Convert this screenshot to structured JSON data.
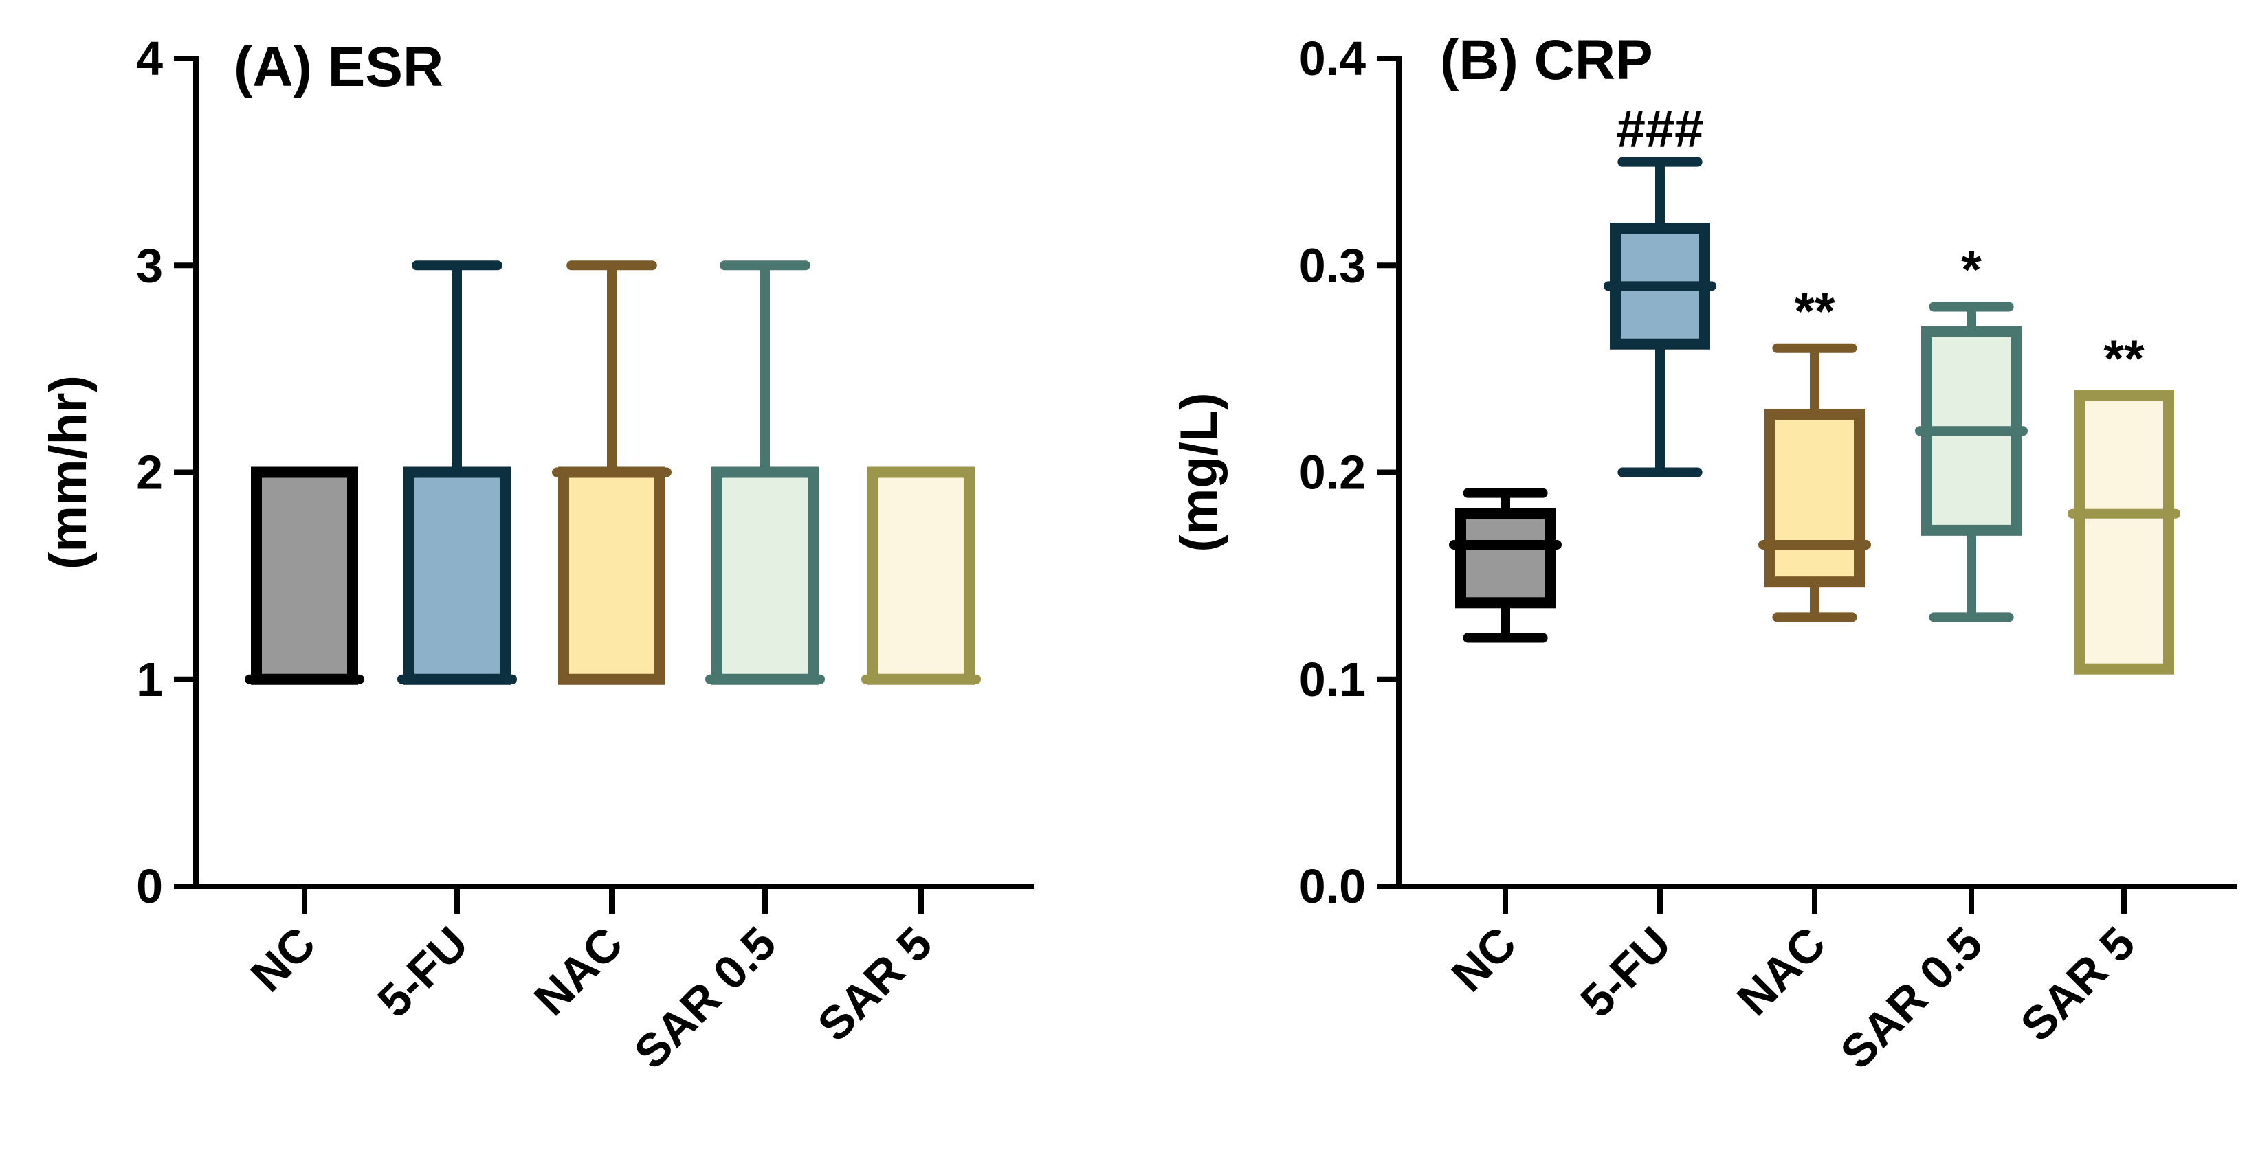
{
  "chart_data": [
    {
      "type": "box",
      "title": "(A) ESR",
      "xlabel": "",
      "ylabel": "(mm/hr)",
      "ylim": [
        0,
        4
      ],
      "yticks": [
        0,
        1,
        2,
        3,
        4
      ],
      "categories": [
        "NC",
        "5-FU",
        "NAC",
        "SAR 0.5",
        "SAR 5"
      ],
      "boxes": [
        {
          "category": "NC",
          "min": 1,
          "q1": 1,
          "median": 1,
          "q3": 2,
          "max": 2
        },
        {
          "category": "5-FU",
          "min": 1,
          "q1": 1,
          "median": 1,
          "q3": 2,
          "max": 3
        },
        {
          "category": "NAC",
          "min": 1,
          "q1": 1,
          "median": 2,
          "q3": 2,
          "max": 3
        },
        {
          "category": "SAR 0.5",
          "min": 1,
          "q1": 1,
          "median": 1,
          "q3": 2,
          "max": 3
        },
        {
          "category": "SAR 5",
          "min": 1,
          "q1": 1,
          "median": 1,
          "q3": 2,
          "max": 2
        }
      ],
      "annotations": [
        "",
        "",
        "",
        "",
        ""
      ],
      "grid": false,
      "legend": "none"
    },
    {
      "type": "box",
      "title": "(B) CRP",
      "xlabel": "",
      "ylabel": "(mg/L)",
      "ylim": [
        0,
        0.4
      ],
      "yticks": [
        "0.0",
        "0.1",
        "0.2",
        "0.3",
        "0.4"
      ],
      "categories": [
        "NC",
        "5-FU",
        "NAC",
        "SAR 0.5",
        "SAR 5"
      ],
      "boxes": [
        {
          "category": "NC",
          "min": 0.12,
          "q1": 0.137,
          "median": 0.165,
          "q3": 0.18,
          "max": 0.19
        },
        {
          "category": "5-FU",
          "min": 0.2,
          "q1": 0.262,
          "median": 0.29,
          "q3": 0.318,
          "max": 0.35
        },
        {
          "category": "NAC",
          "min": 0.13,
          "q1": 0.147,
          "median": 0.165,
          "q3": 0.228,
          "max": 0.26
        },
        {
          "category": "SAR 0.5",
          "min": 0.13,
          "q1": 0.172,
          "median": 0.22,
          "q3": 0.268,
          "max": 0.28
        },
        {
          "category": "SAR 5",
          "min": 0.105,
          "q1": 0.105,
          "median": 0.18,
          "q3": 0.237,
          "max": 0.237
        }
      ],
      "annotations": [
        "",
        "###",
        "**",
        "*",
        "**"
      ],
      "grid": false,
      "legend": "none"
    }
  ],
  "colors": {
    "strokes": [
      "#000000",
      "#0c3040",
      "#7a5a28",
      "#4a7670",
      "#9c964c"
    ],
    "fills": [
      "#999999",
      "#8eb1ca",
      "#fde8a7",
      "#e3f0e2",
      "#fcf6e0"
    ]
  }
}
